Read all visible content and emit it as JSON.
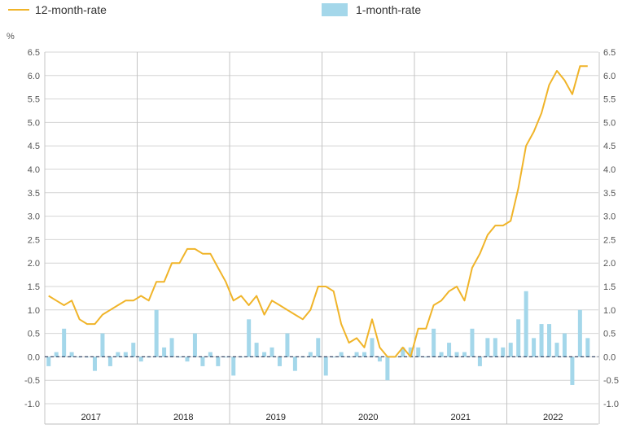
{
  "chart_data": {
    "type": "line",
    "unit_label": "%",
    "y_ticks": [
      "6.5",
      "6.0",
      "5.5",
      "5.0",
      "4.5",
      "4.0",
      "3.5",
      "3.0",
      "2.5",
      "2.0",
      "1.5",
      "1.0",
      "0.5",
      "0.0",
      "-0.5",
      "-1.0"
    ],
    "ylim": [
      -1.0,
      6.5
    ],
    "years": [
      "2017",
      "2018",
      "2019",
      "2020",
      "2021",
      "2022"
    ],
    "grid": true,
    "legend_position": "top",
    "series": [
      {
        "name": "12-month-rate",
        "kind": "line",
        "color": "#f0b429",
        "values": [
          1.3,
          1.2,
          1.1,
          1.2,
          0.8,
          0.7,
          0.7,
          0.9,
          1.0,
          1.1,
          1.2,
          1.2,
          1.3,
          1.2,
          1.6,
          1.6,
          2.0,
          2.0,
          2.3,
          2.3,
          2.2,
          2.2,
          1.9,
          1.6,
          1.2,
          1.3,
          1.1,
          1.3,
          0.9,
          1.2,
          1.1,
          1.0,
          0.9,
          0.8,
          1.0,
          1.5,
          1.5,
          1.4,
          0.7,
          0.3,
          0.4,
          0.2,
          0.8,
          0.2,
          0.0,
          0.0,
          0.2,
          0.0,
          0.6,
          0.6,
          1.1,
          1.2,
          1.4,
          1.5,
          1.2,
          1.9,
          2.2,
          2.6,
          2.8,
          2.8,
          2.9,
          3.6,
          4.5,
          4.8,
          5.2,
          5.8,
          6.1,
          5.9,
          5.6,
          6.2,
          6.2
        ]
      },
      {
        "name": "1-month-rate",
        "kind": "bar",
        "color": "#a4d7ea",
        "values": [
          -0.2,
          0.1,
          0.6,
          0.1,
          0.0,
          0.0,
          -0.3,
          0.5,
          -0.2,
          0.1,
          0.1,
          0.3,
          -0.1,
          0.0,
          1.0,
          0.2,
          0.4,
          0.0,
          -0.1,
          0.5,
          -0.2,
          0.1,
          -0.2,
          0.0,
          -0.4,
          0.0,
          0.8,
          0.3,
          0.1,
          0.2,
          -0.2,
          0.5,
          -0.3,
          0.0,
          0.1,
          0.4,
          -0.4,
          0.0,
          0.1,
          0.0,
          0.1,
          0.1,
          0.4,
          -0.1,
          -0.5,
          0.0,
          0.2,
          0.2,
          0.2,
          0.0,
          0.6,
          0.1,
          0.3,
          0.1,
          0.1,
          0.6,
          -0.2,
          0.4,
          0.4,
          0.2,
          0.3,
          0.8,
          1.4,
          0.4,
          0.7,
          0.7,
          0.3,
          0.5,
          -0.6,
          1.0,
          0.4
        ]
      }
    ]
  },
  "legend": {
    "line_label": "12-month-rate",
    "bar_label": "1-month-rate"
  }
}
